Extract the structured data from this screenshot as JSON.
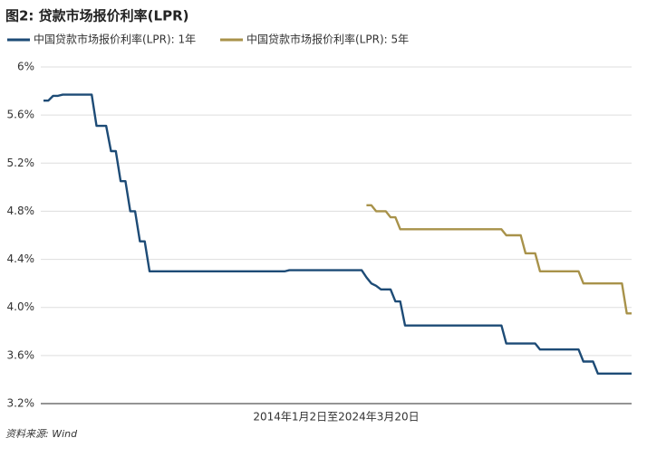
{
  "chart_data": {
    "type": "line",
    "title": "图2: 贷款市场报价利率(LPR)",
    "x_label": "2014年1月2日至2024年3月20日",
    "source": "资料来源: Wind",
    "categories": [
      null,
      null,
      null,
      null,
      null,
      null,
      null,
      null,
      null,
      null,
      null,
      null,
      null,
      null,
      null,
      null,
      null,
      null,
      null,
      null,
      null,
      null,
      null,
      null,
      null,
      null,
      null,
      null,
      null,
      null,
      null,
      null,
      null,
      null,
      null,
      null,
      null,
      null,
      null,
      null,
      null,
      null,
      null,
      null,
      null,
      null,
      null,
      null,
      null,
      null,
      null,
      null,
      null,
      null,
      null,
      null,
      null,
      null,
      null,
      null,
      null,
      null,
      null,
      null,
      null,
      null,
      null,
      null,
      null,
      null,
      null,
      null,
      null,
      null,
      null,
      null,
      null,
      null,
      null,
      null,
      null,
      null,
      null,
      null,
      null,
      null,
      null,
      null,
      null,
      null,
      null,
      null,
      null,
      null,
      null,
      null,
      null,
      null,
      null,
      null,
      null,
      null,
      null,
      null,
      null,
      null,
      null,
      null,
      null,
      null,
      null,
      null,
      null,
      null,
      null,
      null,
      null,
      null,
      null,
      null,
      null,
      null,
      null
    ],
    "series": [
      {
        "name": "中国贷款市场报价利率(LPR): 1年",
        "color": "#1d4b76",
        "values": [
          5.72,
          5.72,
          5.76,
          5.76,
          5.77,
          5.77,
          5.77,
          5.77,
          5.77,
          5.77,
          5.77,
          5.51,
          5.51,
          5.51,
          5.3,
          5.3,
          5.05,
          5.05,
          4.8,
          4.8,
          4.55,
          4.55,
          4.3,
          4.3,
          4.3,
          4.3,
          4.3,
          4.3,
          4.3,
          4.3,
          4.3,
          4.3,
          4.3,
          4.3,
          4.3,
          4.3,
          4.3,
          4.3,
          4.3,
          4.3,
          4.3,
          4.3,
          4.3,
          4.3,
          4.3,
          4.3,
          4.3,
          4.3,
          4.3,
          4.3,
          4.3,
          4.31,
          4.31,
          4.31,
          4.31,
          4.31,
          4.31,
          4.31,
          4.31,
          4.31,
          4.31,
          4.31,
          4.31,
          4.31,
          4.31,
          4.31,
          4.31,
          4.25,
          4.2,
          4.18,
          4.15,
          4.15,
          4.15,
          4.05,
          4.05,
          3.85,
          3.85,
          3.85,
          3.85,
          3.85,
          3.85,
          3.85,
          3.85,
          3.85,
          3.85,
          3.85,
          3.85,
          3.85,
          3.85,
          3.85,
          3.85,
          3.85,
          3.85,
          3.85,
          3.85,
          3.85,
          3.7,
          3.7,
          3.7,
          3.7,
          3.7,
          3.7,
          3.7,
          3.65,
          3.65,
          3.65,
          3.65,
          3.65,
          3.65,
          3.65,
          3.65,
          3.65,
          3.55,
          3.55,
          3.55,
          3.45,
          3.45,
          3.45,
          3.45,
          3.45,
          3.45,
          3.45,
          3.45
        ]
      },
      {
        "name": "中国贷款市场报价利率(LPR): 5年",
        "color": "#a8924a",
        "values": [
          null,
          null,
          null,
          null,
          null,
          null,
          null,
          null,
          null,
          null,
          null,
          null,
          null,
          null,
          null,
          null,
          null,
          null,
          null,
          null,
          null,
          null,
          null,
          null,
          null,
          null,
          null,
          null,
          null,
          null,
          null,
          null,
          null,
          null,
          null,
          null,
          null,
          null,
          null,
          null,
          null,
          null,
          null,
          null,
          null,
          null,
          null,
          null,
          null,
          null,
          null,
          null,
          null,
          null,
          null,
          null,
          null,
          null,
          null,
          null,
          null,
          null,
          null,
          null,
          null,
          null,
          null,
          4.85,
          4.85,
          4.8,
          4.8,
          4.8,
          4.75,
          4.75,
          4.65,
          4.65,
          4.65,
          4.65,
          4.65,
          4.65,
          4.65,
          4.65,
          4.65,
          4.65,
          4.65,
          4.65,
          4.65,
          4.65,
          4.65,
          4.65,
          4.65,
          4.65,
          4.65,
          4.65,
          4.65,
          4.65,
          4.6,
          4.6,
          4.6,
          4.6,
          4.45,
          4.45,
          4.45,
          4.3,
          4.3,
          4.3,
          4.3,
          4.3,
          4.3,
          4.3,
          4.3,
          4.3,
          4.2,
          4.2,
          4.2,
          4.2,
          4.2,
          4.2,
          4.2,
          4.2,
          4.2,
          3.95,
          3.95
        ]
      }
    ],
    "ylim": [
      3.2,
      6
    ],
    "yticks": [
      {
        "value": 3.2,
        "label": "3.2%"
      },
      {
        "value": 3.6,
        "label": "3.6%"
      },
      {
        "value": 4.0,
        "label": "4.0%"
      },
      {
        "value": 4.4,
        "label": "4.4%"
      },
      {
        "value": 4.8,
        "label": "4.8%"
      },
      {
        "value": 5.2,
        "label": "5.2%"
      },
      {
        "value": 5.6,
        "label": "5.6%"
      },
      {
        "value": 6,
        "label": "6%"
      }
    ],
    "grid": true
  }
}
